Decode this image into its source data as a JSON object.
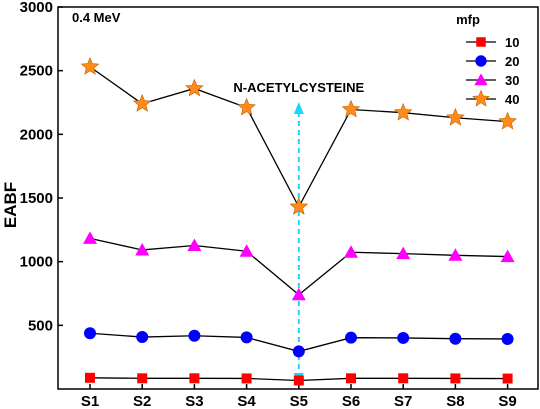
{
  "chart_data": {
    "type": "line",
    "categories": [
      "S1",
      "S2",
      "S3",
      "S4",
      "S5",
      "S6",
      "S7",
      "S8",
      "S9"
    ],
    "ylabel": "EABF",
    "ylim": [
      0,
      3000
    ],
    "yticks": [
      500,
      1000,
      1500,
      2000,
      2500,
      3000
    ],
    "energy_label": "0.4 MeV",
    "annotation": "N-ACETYLCYSTEINE",
    "annotation_category": "S5",
    "legend": {
      "title": "mfp",
      "placement": "top-right"
    },
    "series": [
      {
        "name": "10",
        "marker": "square",
        "color": "#ff0000",
        "values": [
          88,
          84,
          84,
          83,
          67,
          84,
          84,
          83,
          82
        ]
      },
      {
        "name": "20",
        "marker": "circle",
        "color": "#0000ff",
        "values": [
          438,
          408,
          418,
          405,
          295,
          403,
          401,
          395,
          393
        ]
      },
      {
        "name": "30",
        "marker": "triangle",
        "color": "#ff00ff",
        "values": [
          1183,
          1092,
          1127,
          1082,
          740,
          1074,
          1063,
          1050,
          1040
        ]
      },
      {
        "name": "40",
        "marker": "star",
        "color": "#ff8c1a",
        "values": [
          2530,
          2240,
          2360,
          2210,
          1430,
          2195,
          2170,
          2130,
          2100
        ]
      }
    ]
  }
}
